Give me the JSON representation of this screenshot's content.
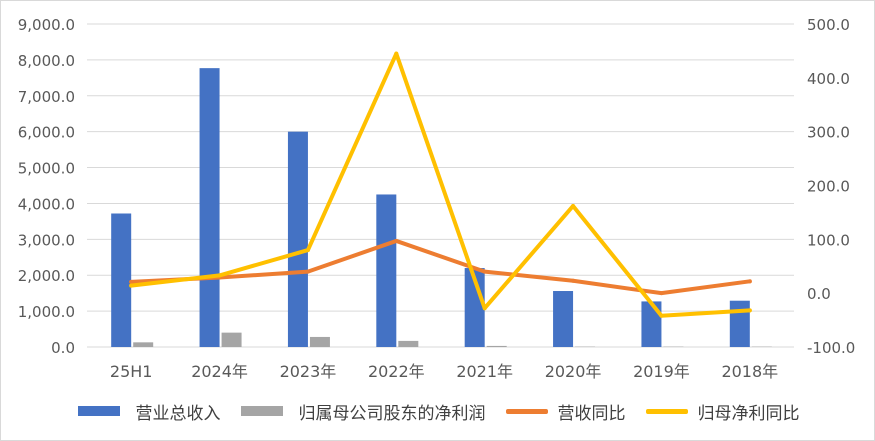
{
  "chart_data": {
    "type": "bar+line",
    "categories": [
      "25H1",
      "2024年",
      "2023年",
      "2022年",
      "2021年",
      "2020年",
      "2019年",
      "2018年"
    ],
    "primary_axis": {
      "ylim": [
        0,
        9000
      ],
      "ticks": [
        "0.0",
        "1,000.0",
        "2,000.0",
        "3,000.0",
        "4,000.0",
        "5,000.0",
        "6,000.0",
        "7,000.0",
        "8,000.0",
        "9,000.0"
      ]
    },
    "secondary_axis": {
      "ylim": [
        -100,
        500
      ],
      "ticks": [
        "-100.0",
        "0.0",
        "100.0",
        "200.0",
        "300.0",
        "400.0",
        "500.0"
      ]
    },
    "series": [
      {
        "name": "营业总收入",
        "kind": "bar",
        "axis": "primary",
        "color": "#4472C4",
        "values": [
          3720,
          7770,
          6000,
          4250,
          2200,
          1560,
          1270,
          1290
        ]
      },
      {
        "name": "归属母公司股东的净利润",
        "kind": "bar",
        "axis": "primary",
        "color": "#A5A5A5",
        "values": [
          130,
          400,
          280,
          170,
          30,
          10,
          10,
          10
        ]
      },
      {
        "name": "营收同比",
        "kind": "line",
        "axis": "secondary",
        "color": "#ED7D31",
        "values": [
          21,
          29,
          40,
          97,
          40,
          23,
          0,
          22
        ]
      },
      {
        "name": "归母净利同比",
        "kind": "line",
        "axis": "secondary",
        "color": "#FFC000",
        "values": [
          14,
          33,
          80,
          445,
          -28,
          162,
          -42,
          -32
        ]
      }
    ],
    "grid": true,
    "legend_position": "bottom"
  }
}
